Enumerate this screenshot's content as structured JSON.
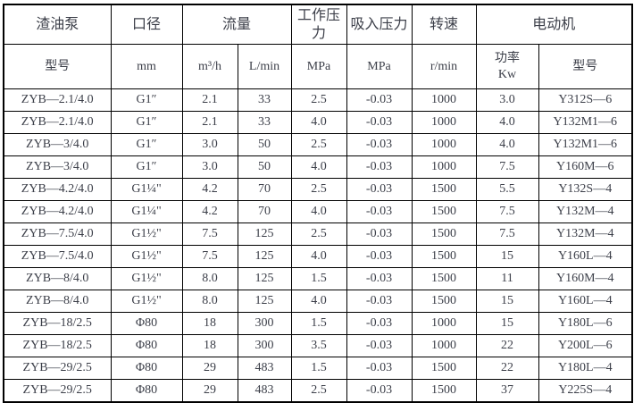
{
  "table": {
    "header_row1": {
      "pump": "渣油泵",
      "diameter": "口径",
      "flow": "流量",
      "working_pressure": "工作压力",
      "suction_pressure": "吸入压力",
      "speed": "转速",
      "motor": "电动机"
    },
    "header_row2": {
      "model": "型号",
      "diameter_unit": "mm",
      "flow_unit_m3h": "m³/h",
      "flow_unit_lmin": "L/min",
      "working_pressure_unit": "MPa",
      "suction_pressure_unit": "MPa",
      "speed_unit": "r/min",
      "power_label": "功率",
      "power_unit": "Kw",
      "motor_model": "型号"
    },
    "rows": [
      [
        "ZYB—2.1/4.0",
        "G1″",
        "2.1",
        "33",
        "2.5",
        "-0.03",
        "1000",
        "3.0",
        "Y312S—6"
      ],
      [
        "ZYB—2.1/4.0",
        "G1″",
        "2.1",
        "33",
        "4.0",
        "-0.03",
        "1000",
        "4.0",
        "Y132M1—6"
      ],
      [
        "ZYB—3/4.0",
        "G1″",
        "3.0",
        "50",
        "2.5",
        "-0.03",
        "1000",
        "4.0",
        "Y132M1—6"
      ],
      [
        "ZYB—3/4.0",
        "G1″",
        "3.0",
        "50",
        "4.0",
        "-0.03",
        "1000",
        "7.5",
        "Y160M—6"
      ],
      [
        "ZYB—4.2/4.0",
        "G1¼\"",
        "4.2",
        "70",
        "2.5",
        "-0.03",
        "1500",
        "5.5",
        "Y132S—4"
      ],
      [
        "ZYB—4.2/4.0",
        "G1¼\"",
        "4.2",
        "70",
        "4.0",
        "-0.03",
        "1500",
        "7.5",
        "Y132M—4"
      ],
      [
        "ZYB—7.5/4.0",
        "G1½\"",
        "7.5",
        "125",
        "2.5",
        "-0.03",
        "1500",
        "7.5",
        "Y132M—4"
      ],
      [
        "ZYB—7.5/4.0",
        "G1½\"",
        "7.5",
        "125",
        "4.0",
        "-0.03",
        "1500",
        "15",
        "Y160L—4"
      ],
      [
        "ZYB—8/4.0",
        "G1½\"",
        "8.0",
        "125",
        "1.5",
        "-0.03",
        "1500",
        "11",
        "Y160M—4"
      ],
      [
        "ZYB—8/4.0",
        "G1½\"",
        "8.0",
        "125",
        "4.0",
        "-0.03",
        "1500",
        "15",
        "Y160L—4"
      ],
      [
        "ZYB—18/2.5",
        "Φ80",
        "18",
        "300",
        "1.5",
        "-0.03",
        "1000",
        "15",
        "Y180L—6"
      ],
      [
        "ZYB—18/2.5",
        "Φ80",
        "18",
        "300",
        "3.5",
        "-0.03",
        "1000",
        "22",
        "Y200L—6"
      ],
      [
        "ZYB—29/2.5",
        "Φ80",
        "29",
        "483",
        "1.5",
        "-0.03",
        "1500",
        "22",
        "Y180L—4"
      ],
      [
        "ZYB—29/2.5",
        "Φ80",
        "29",
        "483",
        "2.5",
        "-0.03",
        "1500",
        "37",
        "Y225S—4"
      ]
    ]
  },
  "colors": {
    "border": "#000000",
    "text": "#3c3f49",
    "background": "#ffffff"
  }
}
